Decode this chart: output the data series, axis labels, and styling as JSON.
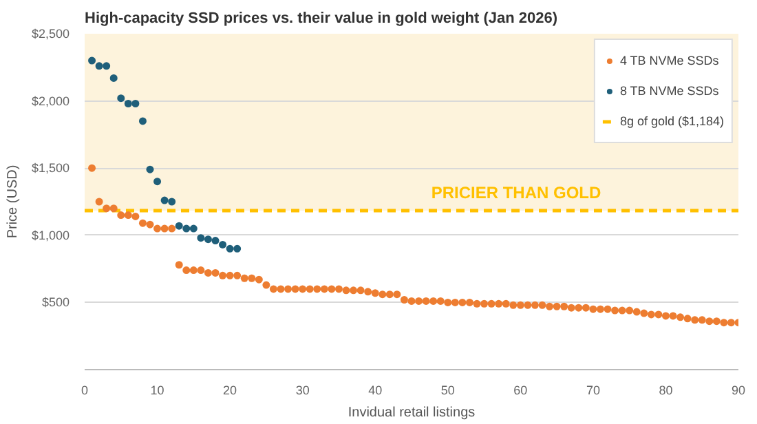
{
  "chart_data": {
    "type": "scatter",
    "title": "High-capacity SSD prices vs. their value in gold weight (Jan 2026)",
    "xlabel": "Invidual retail listings",
    "ylabel": "Price (USD)",
    "xlim": [
      0,
      90
    ],
    "xticks": [
      0,
      10,
      20,
      30,
      40,
      50,
      60,
      70,
      80,
      90
    ],
    "ylim": [
      0,
      2500
    ],
    "yticks": [
      {
        "value": 500,
        "label": "$500"
      },
      {
        "value": 1000,
        "label": "$1,000"
      },
      {
        "value": 1500,
        "label": "$1,500"
      },
      {
        "value": 2000,
        "label": "$2,000"
      },
      {
        "value": 2500,
        "label": "$2,500"
      }
    ],
    "grid": "y",
    "legend": "top right",
    "marker": "circle",
    "series": [
      {
        "name": "4 TB NVMe SSDs",
        "color": "#ed7d31",
        "x": [
          1,
          2,
          3,
          4,
          5,
          6,
          7,
          8,
          9,
          10,
          11,
          12,
          13,
          14,
          15,
          16,
          17,
          18,
          19,
          20,
          21,
          22,
          23,
          24,
          25,
          26,
          27,
          28,
          29,
          30,
          31,
          32,
          33,
          34,
          35,
          36,
          37,
          38,
          39,
          40,
          41,
          42,
          43,
          44,
          45,
          46,
          47,
          48,
          49,
          50,
          51,
          52,
          53,
          54,
          55,
          56,
          57,
          58,
          59,
          60,
          61,
          62,
          63,
          64,
          65,
          66,
          67,
          68,
          69,
          70,
          71,
          72,
          73,
          74,
          75,
          76,
          77,
          78,
          79,
          80,
          81,
          82,
          83,
          84,
          85,
          86,
          87,
          88,
          89,
          90
        ],
        "values": [
          1500,
          1250,
          1200,
          1200,
          1150,
          1150,
          1140,
          1090,
          1080,
          1050,
          1050,
          1050,
          780,
          740,
          740,
          740,
          720,
          720,
          700,
          700,
          700,
          680,
          680,
          670,
          630,
          600,
          600,
          600,
          600,
          600,
          600,
          600,
          600,
          600,
          600,
          590,
          590,
          590,
          580,
          570,
          560,
          560,
          560,
          520,
          510,
          510,
          510,
          510,
          510,
          500,
          500,
          500,
          500,
          490,
          490,
          490,
          490,
          490,
          480,
          480,
          480,
          480,
          480,
          470,
          470,
          470,
          460,
          460,
          460,
          450,
          450,
          450,
          440,
          440,
          440,
          430,
          420,
          410,
          410,
          400,
          400,
          390,
          380,
          370,
          370,
          360,
          360,
          350,
          350,
          350
        ]
      },
      {
        "name": "8 TB NVMe SSDs",
        "color": "#1f5f7a",
        "x": [
          1,
          2,
          3,
          4,
          5,
          6,
          7,
          8,
          9,
          10,
          11,
          12,
          13,
          14,
          15,
          16,
          17,
          18,
          19,
          20,
          21
        ],
        "values": [
          2300,
          2260,
          2260,
          2170,
          2020,
          1980,
          1980,
          1850,
          1490,
          1400,
          1260,
          1250,
          1070,
          1050,
          1050,
          980,
          970,
          960,
          930,
          900,
          900
        ]
      }
    ],
    "ref_lines": [
      {
        "axis": "y",
        "value": 1184,
        "label": "8g of gold ($1,184)",
        "color": "#ffc000",
        "line_style": "dashed"
      }
    ],
    "bands": [
      {
        "axis": "y",
        "from": 1184,
        "to": 2500,
        "label": "PRICIER THAN GOLD",
        "color": "#fdf3dc"
      }
    ]
  }
}
